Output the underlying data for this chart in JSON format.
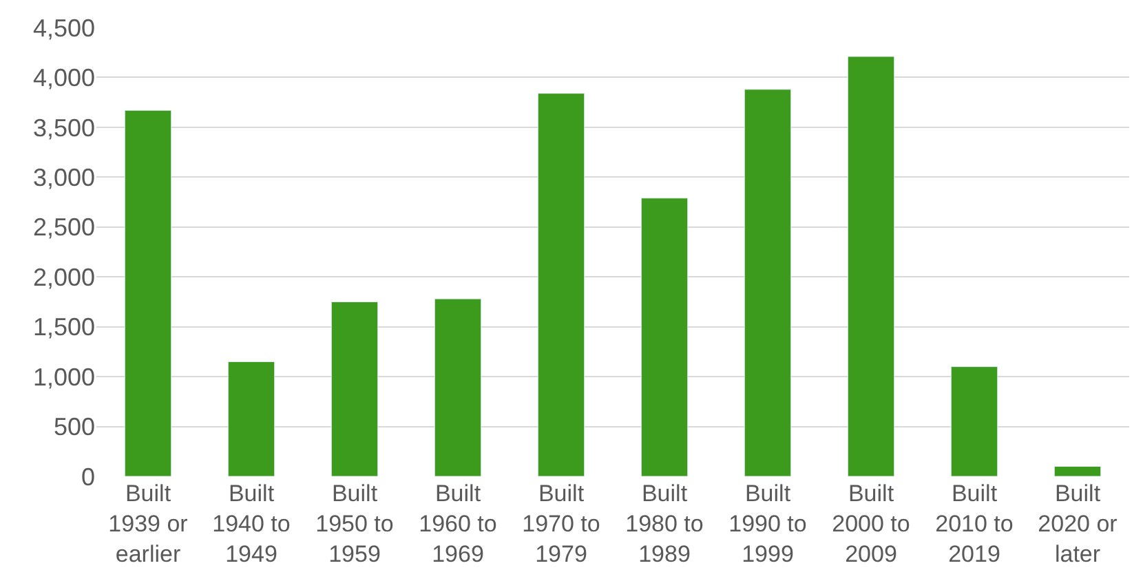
{
  "chart_data": {
    "type": "bar",
    "categories": [
      "Built\n1939 or\nearlier",
      "Built\n1940 to\n1949",
      "Built\n1950 to\n1959",
      "Built\n1960 to\n1969",
      "Built\n1970 to\n1979",
      "Built\n1980 to\n1989",
      "Built\n1990 to\n1999",
      "Built\n2000 to\n2009",
      "Built\n2010 to\n2019",
      "Built\n2020 or\nlater"
    ],
    "values": [
      3670,
      1150,
      1750,
      1780,
      3840,
      2790,
      3880,
      4210,
      1100,
      100
    ],
    "color": "#3c9a1c",
    "ylim": [
      0,
      4500
    ],
    "yticks": [
      {
        "value": 0,
        "label": "0"
      },
      {
        "value": 500,
        "label": "500"
      },
      {
        "value": 1000,
        "label": "1,000"
      },
      {
        "value": 1500,
        "label": "1,500"
      },
      {
        "value": 2000,
        "label": "2,000"
      },
      {
        "value": 2500,
        "label": "2,500"
      },
      {
        "value": 3000,
        "label": "3,000"
      },
      {
        "value": 3500,
        "label": "3,500"
      },
      {
        "value": 4000,
        "label": "4,000"
      },
      {
        "value": 4500,
        "label": "4,500"
      }
    ],
    "grid": "y"
  }
}
